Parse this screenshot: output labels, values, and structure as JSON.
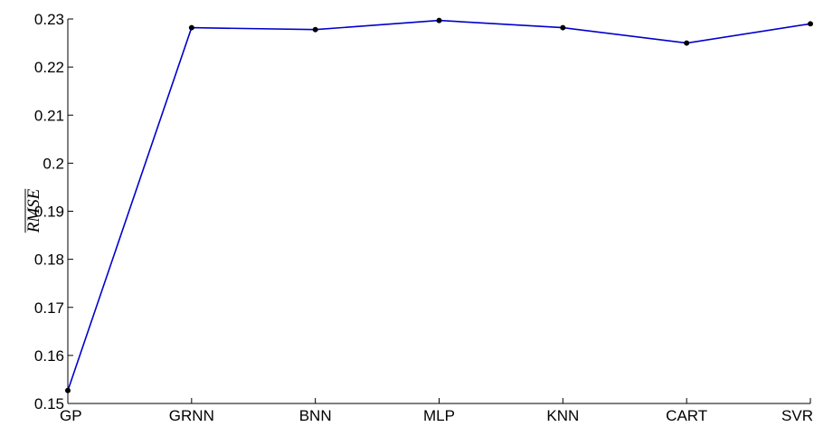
{
  "chart_data": {
    "type": "line",
    "title": "",
    "xlabel": "",
    "ylabel": "RMSE",
    "ylabel_overline": true,
    "categories": [
      "GP",
      "GRNN",
      "BNN",
      "MLP",
      "KNN",
      "CART",
      "SVR"
    ],
    "series": [
      {
        "values": [
          0.1527,
          0.2282,
          0.2278,
          0.2297,
          0.2282,
          0.225,
          0.229
        ],
        "color": "#0000cc",
        "marker": "dot",
        "marker_color": "#000000"
      }
    ],
    "ylim": [
      0.15,
      0.23
    ],
    "yticks": [
      0.15,
      0.16,
      0.17,
      0.18,
      0.19,
      0.2,
      0.21,
      0.22,
      0.23
    ],
    "ytick_labels": [
      "0.15",
      "0.16",
      "0.17",
      "0.18",
      "0.19",
      "0.2",
      "0.21",
      "0.22",
      "0.23"
    ],
    "grid": false,
    "legend": null
  }
}
